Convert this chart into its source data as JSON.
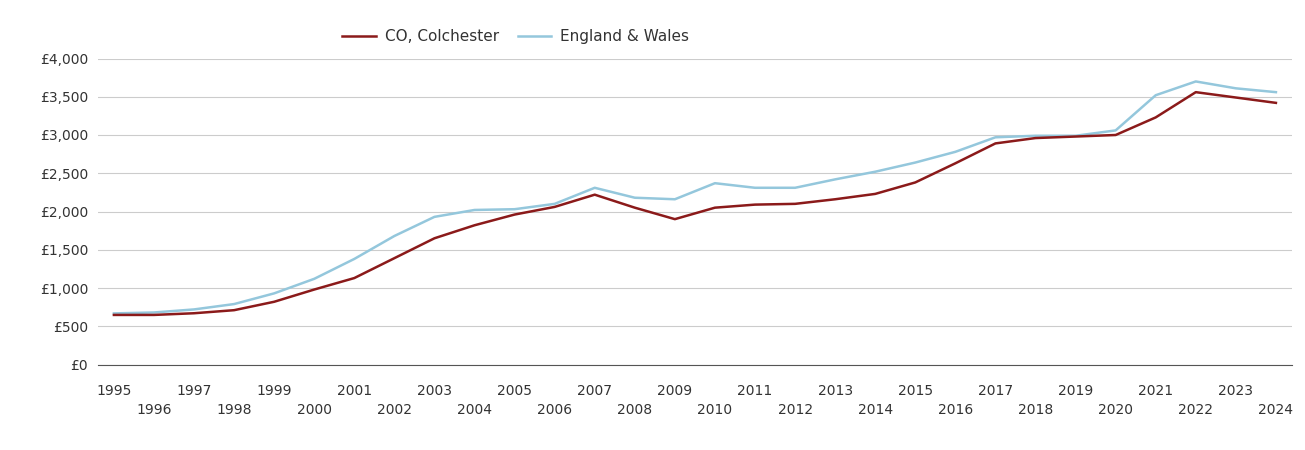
{
  "years": [
    1995,
    1996,
    1997,
    1998,
    1999,
    2000,
    2001,
    2002,
    2003,
    2004,
    2005,
    2006,
    2007,
    2008,
    2009,
    2010,
    2011,
    2012,
    2013,
    2014,
    2015,
    2016,
    2017,
    2018,
    2019,
    2020,
    2021,
    2022,
    2023,
    2024
  ],
  "colchester": [
    648,
    648,
    670,
    710,
    820,
    980,
    1130,
    1390,
    1650,
    1820,
    1960,
    2060,
    2220,
    2050,
    1900,
    2050,
    2090,
    2100,
    2160,
    2230,
    2380,
    2630,
    2890,
    2960,
    2980,
    3000,
    3230,
    3560,
    3490,
    3420
  ],
  "england_wales": [
    668,
    680,
    720,
    790,
    930,
    1120,
    1380,
    1680,
    1930,
    2020,
    2030,
    2100,
    2310,
    2180,
    2160,
    2370,
    2310,
    2310,
    2420,
    2520,
    2640,
    2780,
    2970,
    2990,
    2990,
    3060,
    3520,
    3700,
    3610,
    3560
  ],
  "colchester_color": "#8B1A1A",
  "england_wales_color": "#94C7DC",
  "colchester_label": "CO, Colchester",
  "england_wales_label": "England & Wales",
  "ylim": [
    0,
    4000
  ],
  "yticks": [
    0,
    500,
    1000,
    1500,
    2000,
    2500,
    3000,
    3500,
    4000
  ],
  "ytick_labels": [
    "£0",
    "£500",
    "£1,000",
    "£1,500",
    "£2,000",
    "£2,500",
    "£3,000",
    "£3,500",
    "£4,000"
  ],
  "background_color": "#ffffff",
  "grid_color": "#cccccc",
  "line_width": 1.8,
  "legend_fontsize": 11,
  "tick_fontsize": 10,
  "odd_years": [
    1995,
    1997,
    1999,
    2001,
    2003,
    2005,
    2007,
    2009,
    2011,
    2013,
    2015,
    2017,
    2019,
    2021,
    2023
  ],
  "even_years": [
    1996,
    1998,
    2000,
    2002,
    2004,
    2006,
    2008,
    2010,
    2012,
    2014,
    2016,
    2018,
    2020,
    2022,
    2024
  ]
}
